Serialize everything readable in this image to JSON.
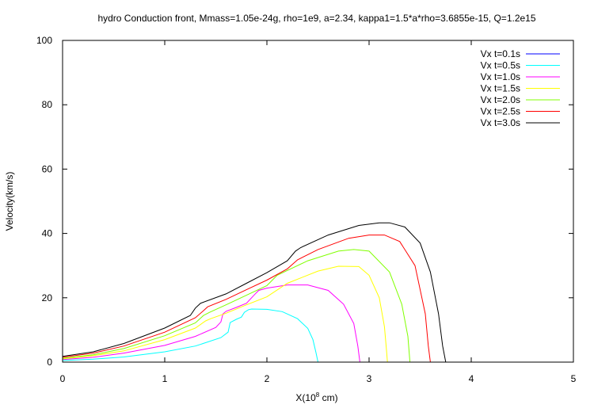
{
  "chart_data": {
    "type": "line",
    "title": "hydro Conduction front, Mmass=1.05e-24g, rho=1e9, a=2.34, kappa1=1.5*a*rho=3.6855e-15, Q=1.2e15",
    "xlabel": "X(10",
    "xlabel_sup": "8",
    "xlabel_tail": " cm)",
    "ylabel": "Velocity(km/s)",
    "xlim": [
      0,
      5
    ],
    "ylim": [
      0,
      100
    ],
    "xticks": [
      "0",
      "1",
      "2",
      "3",
      "4",
      "5"
    ],
    "yticks": [
      "0",
      "20",
      "40",
      "60",
      "80",
      "100"
    ],
    "grid": false,
    "legend_position": "top-right",
    "series": [
      {
        "name": "Vx t=0.1s",
        "color": "#0000ff",
        "x": [
          0,
          5
        ],
        "y": [
          0,
          0
        ]
      },
      {
        "name": "Vx t=0.5s",
        "color": "#00ffff",
        "x": [
          0,
          0.3,
          0.6,
          1.0,
          1.3,
          1.55,
          1.62,
          1.64,
          1.7,
          1.75,
          1.78,
          1.82,
          1.85,
          2.0,
          2.15,
          2.3,
          2.4,
          2.45,
          2.48,
          2.5,
          5
        ],
        "y": [
          0.5,
          0.9,
          1.6,
          3.2,
          5.0,
          7.6,
          9.3,
          12.3,
          13.3,
          14.0,
          15.5,
          16.3,
          16.5,
          16.4,
          15.7,
          13.5,
          10.5,
          7.0,
          3.0,
          0,
          0
        ]
      },
      {
        "name": "Vx t=1.0s",
        "color": "#ff00ff",
        "x": [
          0,
          0.3,
          0.6,
          1.0,
          1.3,
          1.5,
          1.55,
          1.57,
          1.6,
          1.7,
          1.8,
          1.88,
          1.92,
          2.0,
          2.2,
          2.4,
          2.6,
          2.75,
          2.85,
          2.89,
          2.91,
          5
        ],
        "y": [
          0.8,
          1.5,
          2.8,
          5.2,
          8.0,
          10.8,
          12.5,
          15.0,
          15.8,
          17.0,
          18.3,
          21.0,
          22.3,
          23.0,
          24.0,
          24.0,
          22.3,
          18.0,
          12.0,
          5.0,
          0,
          0
        ]
      },
      {
        "name": "Vx t=1.5s",
        "color": "#ffff00",
        "x": [
          0,
          0.3,
          0.6,
          1.0,
          1.3,
          1.4,
          1.45,
          1.6,
          1.8,
          2.0,
          2.2,
          2.5,
          2.7,
          2.9,
          3.0,
          3.1,
          3.15,
          3.17,
          3.18,
          5
        ],
        "y": [
          1.0,
          2.0,
          3.5,
          7.0,
          10.6,
          12.8,
          13.5,
          15.2,
          17.8,
          20.3,
          24.5,
          28.3,
          29.8,
          29.7,
          27.0,
          20.0,
          11.0,
          4.0,
          0,
          0
        ]
      },
      {
        "name": "Vx t=2.0s",
        "color": "#80ff00",
        "x": [
          0,
          0.3,
          0.6,
          1.0,
          1.3,
          1.38,
          1.44,
          1.6,
          1.8,
          2.0,
          2.1,
          2.4,
          2.7,
          2.85,
          3.0,
          3.2,
          3.32,
          3.38,
          3.4,
          5
        ],
        "y": [
          1.2,
          2.3,
          4.2,
          8.2,
          12.2,
          14.5,
          15.5,
          17.8,
          20.8,
          23.8,
          27.0,
          31.5,
          34.5,
          35.0,
          34.5,
          28.0,
          18.0,
          8.0,
          0,
          0
        ]
      },
      {
        "name": "Vx t=2.5s",
        "color": "#ff0000",
        "x": [
          0,
          0.3,
          0.6,
          1.0,
          1.3,
          1.38,
          1.42,
          1.6,
          1.8,
          2.0,
          2.2,
          2.3,
          2.5,
          2.8,
          3.0,
          3.15,
          3.3,
          3.45,
          3.55,
          3.58,
          3.6,
          5
        ],
        "y": [
          1.5,
          2.8,
          5.0,
          9.3,
          13.8,
          16.0,
          17.2,
          19.5,
          22.5,
          25.5,
          29.0,
          31.8,
          35.0,
          38.5,
          39.5,
          39.5,
          37.5,
          30.0,
          15.0,
          5.0,
          0,
          0
        ]
      },
      {
        "name": "Vx t=3.0s",
        "color": "#000000",
        "x": [
          0,
          0.3,
          0.6,
          1.0,
          1.25,
          1.3,
          1.35,
          1.6,
          1.8,
          2.0,
          2.2,
          2.28,
          2.33,
          2.6,
          2.9,
          3.1,
          3.2,
          3.35,
          3.5,
          3.6,
          3.68,
          3.72,
          3.75,
          5
        ],
        "y": [
          1.8,
          3.2,
          5.8,
          10.6,
          14.5,
          16.8,
          18.3,
          21.2,
          24.5,
          27.8,
          31.5,
          34.5,
          35.6,
          39.5,
          42.5,
          43.3,
          43.3,
          42.0,
          37.0,
          28.0,
          15.0,
          5.0,
          0,
          0
        ]
      }
    ]
  }
}
